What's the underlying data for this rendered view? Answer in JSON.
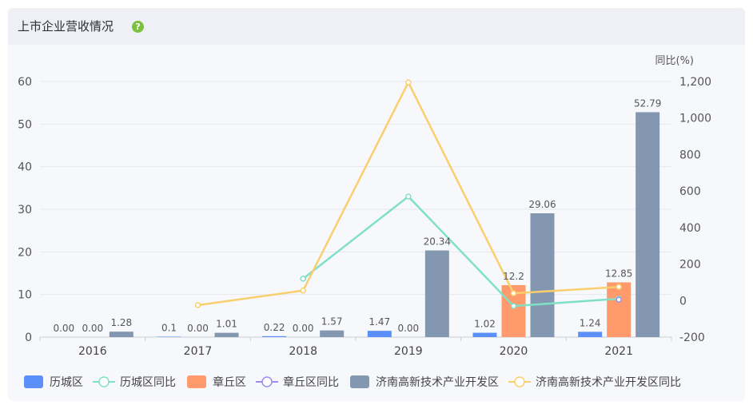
{
  "panel": {
    "title": "上市企业营收情况",
    "help_icon": "help-icon",
    "help_glyph": "?"
  },
  "chart_data": {
    "type": "bar",
    "categories": [
      "2016",
      "2017",
      "2018",
      "2019",
      "2020",
      "2021"
    ],
    "y_left": {
      "ticks": [
        "0",
        "10",
        "20",
        "30",
        "40",
        "50",
        "60"
      ],
      "ylim": [
        0,
        60
      ]
    },
    "y_right": {
      "label": "同比(%)",
      "ticks": [
        "-200",
        "0",
        "200",
        "400",
        "600",
        "800",
        "1,000",
        "1,200"
      ],
      "ylim": [
        -200,
        1200
      ]
    },
    "bar_series": [
      {
        "name": "历城区",
        "color": "#5b8ff9",
        "values": [
          0,
          0.1,
          0.22,
          1.47,
          1.02,
          1.24
        ],
        "labels": [
          "0.00",
          "0.1",
          "0.22",
          "1.47",
          "1.02",
          "1.24"
        ]
      },
      {
        "name": "章丘区",
        "color": "#ff9a6c",
        "values": [
          0,
          0,
          0,
          0,
          12.2,
          12.85
        ],
        "labels": [
          "0.00",
          "0.00",
          "0.00",
          "0.00",
          "12.2",
          "12.85"
        ]
      },
      {
        "name": "济南高新技术产业开发区",
        "color": "#8497b0",
        "values": [
          1.28,
          1.01,
          1.57,
          20.34,
          29.06,
          52.79
        ],
        "labels": [
          "1.28",
          "1.01",
          "1.57",
          "20.34",
          "29.06",
          "52.79"
        ]
      }
    ],
    "line_series": [
      {
        "name": "历城区同比",
        "color": "#7fe0c7",
        "values": [
          null,
          null,
          120,
          570,
          -30,
          10
        ]
      },
      {
        "name": "章丘区同比",
        "color": "#9b8cf2",
        "values": [
          null,
          null,
          null,
          null,
          null,
          5
        ]
      },
      {
        "name": "济南高新技术产业开发区同比",
        "color": "#f9cf6e",
        "values": [
          null,
          -25,
          55,
          1195,
          40,
          75
        ]
      }
    ],
    "legend": {
      "position": "bottom",
      "items": [
        {
          "name": "历城区",
          "kind": "bar",
          "color": "#5b8ff9"
        },
        {
          "name": "历城区同比",
          "kind": "line",
          "color": "#7fe0c7"
        },
        {
          "name": "章丘区",
          "kind": "bar",
          "color": "#ff9a6c"
        },
        {
          "name": "章丘区同比",
          "kind": "line",
          "color": "#9b8cf2"
        },
        {
          "name": "济南高新技术产业开发区",
          "kind": "bar",
          "color": "#8497b0"
        },
        {
          "name": "济南高新技术产业开发区同比",
          "kind": "line",
          "color": "#f9cf6e"
        }
      ]
    },
    "grid": true
  }
}
